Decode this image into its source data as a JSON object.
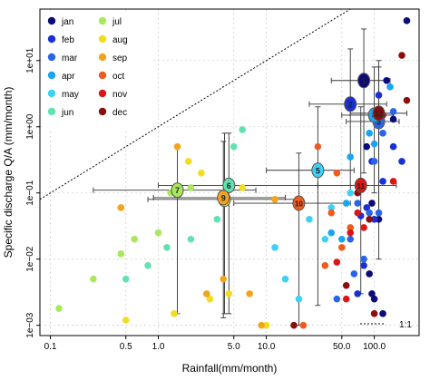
{
  "chart_data": {
    "type": "scatter",
    "xlabel": "Rainfall(mm/month)",
    "ylabel": "Specific discharge Q/A (mm/month)",
    "x_scale": "log",
    "y_scale": "log",
    "xlim": [
      0.08,
      260
    ],
    "ylim": [
      0.0007,
      60
    ],
    "x_ticks": [
      0.1,
      0.5,
      1.0,
      5.0,
      10.0,
      50.0,
      100.0
    ],
    "x_tick_labels": [
      "0.1",
      "0.5",
      "1.0",
      "5.0",
      "10.0",
      "50.0",
      "100.0"
    ],
    "y_ticks": [
      0.001,
      0.01,
      0.1,
      1,
      10
    ],
    "y_tick_labels": [
      "1e−03",
      "1e−02",
      "1e−01",
      "1e+00",
      "1e+01"
    ],
    "grid": true,
    "legend_placement": "top-left",
    "reference_line": {
      "label": "1:1",
      "style": "dotted"
    },
    "series": [
      {
        "name": "jan",
        "color": "#0b0b7a",
        "points": [
          [
            200,
            40
          ],
          [
            130,
            5
          ],
          [
            150,
            1.3
          ],
          [
            85,
            0.5
          ],
          [
            95,
            0.07
          ],
          [
            110,
            0.04
          ],
          [
            95,
            0.003
          ],
          [
            120,
            0.0015
          ],
          [
            100,
            0.0025
          ],
          [
            90,
            0.006
          ]
        ]
      },
      {
        "name": "feb",
        "color": "#1a2fd4",
        "points": [
          [
            110,
            3
          ],
          [
            95,
            0.3
          ],
          [
            120,
            0.15
          ],
          [
            100,
            0.04
          ],
          [
            85,
            0.06
          ],
          [
            70,
            0.003
          ],
          [
            75,
            0.045
          ],
          [
            80,
            0.008
          ],
          [
            180,
            0.3
          ],
          [
            150,
            0.5
          ]
        ]
      },
      {
        "name": "mar",
        "color": "#2a64e8",
        "points": [
          [
            150,
            1.7
          ],
          [
            120,
            0.8
          ],
          [
            100,
            0.3
          ],
          [
            90,
            0.05
          ],
          [
            70,
            0.07
          ],
          [
            80,
            0.01
          ],
          [
            45,
            0.0025
          ],
          [
            65,
            0.006
          ],
          [
            110,
            0.05
          ],
          [
            60,
            0.02
          ]
        ]
      },
      {
        "name": "apr",
        "color": "#18a6f0",
        "points": [
          [
            140,
            4
          ],
          [
            110,
            1.4
          ],
          [
            90,
            0.8
          ],
          [
            60,
            0.35
          ],
          [
            50,
            0.02
          ],
          [
            40,
            0.025
          ],
          [
            55,
            0.07
          ],
          [
            100,
            0.55
          ]
        ]
      },
      {
        "name": "may",
        "color": "#3fd0f5",
        "points": [
          [
            60,
            0.1
          ],
          [
            40,
            0.06
          ],
          [
            30,
            0.2
          ],
          [
            25,
            0.04
          ],
          [
            35,
            0.02
          ],
          [
            20,
            0.0025
          ],
          [
            15,
            0.005
          ],
          [
            12,
            0.015
          ]
        ]
      },
      {
        "name": "jun",
        "color": "#60e3b1",
        "points": [
          [
            6,
            0.9
          ],
          [
            5,
            0.5
          ],
          [
            4,
            0.1
          ],
          [
            3.5,
            0.04
          ],
          [
            2,
            0.02
          ],
          [
            1.2,
            0.015
          ],
          [
            0.8,
            0.008
          ],
          [
            0.5,
            0.005
          ]
        ]
      },
      {
        "name": "jul",
        "color": "#a8e85a",
        "points": [
          [
            0.12,
            0.0018
          ],
          [
            0.25,
            0.005
          ],
          [
            0.45,
            0.012
          ],
          [
            0.6,
            0.02
          ],
          [
            1.0,
            0.025
          ],
          [
            1.3,
            0.1
          ],
          [
            2.0,
            0.12
          ]
        ]
      },
      {
        "name": "aug",
        "color": "#f0de1e",
        "points": [
          [
            1.4,
            0.0015
          ],
          [
            0.5,
            0.0012
          ],
          [
            1.9,
            0.3
          ],
          [
            2.5,
            0.2
          ],
          [
            3.0,
            0.0025
          ],
          [
            4.5,
            0.003
          ],
          [
            6.0,
            0.12
          ],
          [
            10,
            0.001
          ]
        ]
      },
      {
        "name": "sep",
        "color": "#f2a41e",
        "points": [
          [
            0.45,
            0.06
          ],
          [
            1.5,
            0.5
          ],
          [
            2.8,
            0.003
          ],
          [
            4,
            0.005
          ],
          [
            7,
            0.003
          ],
          [
            9,
            0.001
          ],
          [
            12,
            0.08
          ]
        ]
      },
      {
        "name": "oct",
        "color": "#f05a1e",
        "points": [
          [
            30,
            0.5
          ],
          [
            45,
            0.2
          ],
          [
            40,
            0.05
          ],
          [
            50,
            0.015
          ],
          [
            35,
            0.008
          ],
          [
            60,
            0.03
          ],
          [
            22,
            0.001
          ]
        ]
      },
      {
        "name": "nov",
        "color": "#d81818",
        "points": [
          [
            60,
            0.025
          ],
          [
            45,
            0.009
          ],
          [
            55,
            0.0025
          ],
          [
            70,
            0.05
          ],
          [
            80,
            0.03
          ],
          [
            150,
            0.15
          ]
        ]
      },
      {
        "name": "dec",
        "color": "#8a0e0e",
        "points": [
          [
            180,
            12
          ],
          [
            200,
            2.5
          ],
          [
            120,
            1.5
          ],
          [
            70,
            0.1
          ],
          [
            90,
            0.04
          ],
          [
            100,
            0.0015
          ],
          [
            55,
            0.004
          ],
          [
            18,
            0.001
          ]
        ]
      }
    ],
    "monthly_means": [
      {
        "label": "1",
        "month": "jan",
        "x": 80,
        "y": 5,
        "xerr": [
          40,
          140
        ],
        "yerr": [
          0.2,
          30
        ]
      },
      {
        "label": "2",
        "month": "feb",
        "x": 60,
        "y": 2.2,
        "xerr": [
          25,
          130
        ],
        "yerr": [
          0.1,
          15
        ]
      },
      {
        "label": "3",
        "month": "mar",
        "x": 110,
        "y": 1.2,
        "xerr": [
          55,
          170
        ],
        "yerr": [
          0.05,
          8
        ]
      },
      {
        "label": "4",
        "month": "apr",
        "x": 100,
        "y": 1.5,
        "xerr": [
          50,
          150
        ],
        "yerr": [
          0.1,
          8
        ]
      },
      {
        "label": "5",
        "month": "may",
        "x": 30,
        "y": 0.22,
        "xerr": [
          10,
          65
        ],
        "yerr": [
          0.002,
          2
        ]
      },
      {
        "label": "6",
        "month": "jun",
        "x": 4.5,
        "y": 0.13,
        "xerr": [
          1.0,
          30
        ],
        "yerr": [
          0.0015,
          0.8
        ]
      },
      {
        "label": "7",
        "month": "jul",
        "x": 1.5,
        "y": 0.11,
        "xerr": [
          0.25,
          8
        ],
        "yerr": [
          0.0015,
          0.5
        ]
      },
      {
        "label": "8",
        "month": "aug",
        "x": 4.1,
        "y": 0.08,
        "xerr": [
          0.8,
          20
        ],
        "yerr": [
          0.0015,
          0.8
        ]
      },
      {
        "label": "9",
        "month": "sep",
        "x": 4.0,
        "y": 0.085,
        "xerr": [
          0.9,
          15
        ],
        "yerr": [
          0.0013,
          0.6
        ]
      },
      {
        "label": "10",
        "month": "oct",
        "x": 20,
        "y": 0.07,
        "xerr": [
          5,
          60
        ],
        "yerr": [
          0.001,
          0.4
        ]
      },
      {
        "label": "11",
        "month": "nov",
        "x": 75,
        "y": 0.13,
        "xerr": [
          30,
          160
        ],
        "yerr": [
          0.003,
          2
        ]
      },
      {
        "label": "12",
        "month": "dec",
        "x": 110,
        "y": 1.6,
        "xerr": [
          60,
          200
        ],
        "yerr": [
          0.01,
          10
        ]
      }
    ]
  }
}
